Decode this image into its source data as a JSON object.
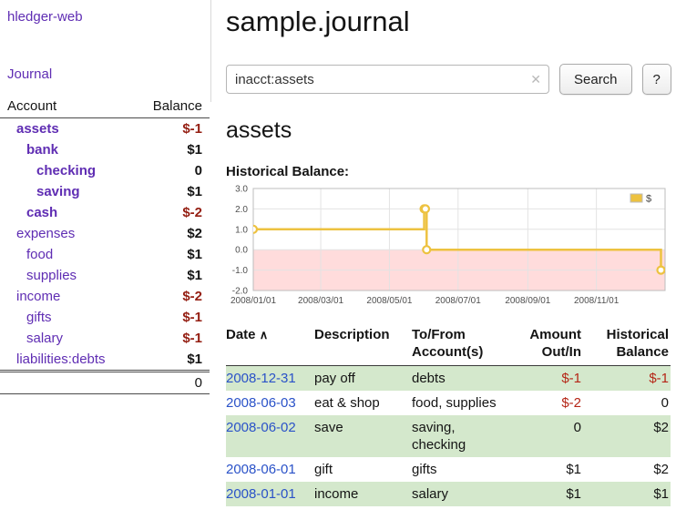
{
  "colors": {
    "purple": "#5f2db3",
    "link_blue": "#2a52c8",
    "negative": "#b52516",
    "sidebar_negative": "#941e12",
    "stripe": "#d4e8cc"
  },
  "app": {
    "brand": "hledger-web",
    "nav_journal": "Journal"
  },
  "sidebar": {
    "header": {
      "account": "Account",
      "balance": "Balance"
    },
    "accounts": [
      {
        "name": "assets",
        "indent": 0,
        "bold": true,
        "negative": true,
        "balance": "$-1",
        "balance_negative": true
      },
      {
        "name": "bank",
        "indent": 1,
        "bold": true,
        "negative": false,
        "balance": "$1",
        "balance_negative": false
      },
      {
        "name": "checking",
        "indent": 2,
        "bold": true,
        "negative": false,
        "balance": "0",
        "balance_negative": false
      },
      {
        "name": "saving",
        "indent": 2,
        "bold": true,
        "negative": false,
        "balance": "$1",
        "balance_negative": false
      },
      {
        "name": "cash",
        "indent": 1,
        "bold": true,
        "negative": true,
        "balance": "$-2",
        "balance_negative": true
      },
      {
        "name": "expenses",
        "indent": 0,
        "bold": false,
        "negative": false,
        "balance": "$2",
        "balance_negative": false
      },
      {
        "name": "food",
        "indent": 1,
        "bold": false,
        "negative": false,
        "balance": "$1",
        "balance_negative": false
      },
      {
        "name": "supplies",
        "indent": 1,
        "bold": false,
        "negative": false,
        "balance": "$1",
        "balance_negative": false
      },
      {
        "name": "income",
        "indent": 0,
        "bold": false,
        "negative": false,
        "balance": "$-2",
        "balance_negative": true
      },
      {
        "name": "gifts",
        "indent": 1,
        "bold": false,
        "negative": false,
        "balance": "$-1",
        "balance_negative": true
      },
      {
        "name": "salary",
        "indent": 1,
        "bold": false,
        "negative": false,
        "balance": "$-1",
        "balance_negative": true
      },
      {
        "name": "liabilities:debts",
        "indent": 0,
        "bold": false,
        "negative": false,
        "balance": "$1",
        "balance_negative": false
      }
    ],
    "total": "0"
  },
  "main": {
    "title": "sample.journal",
    "search": {
      "value": "inacct:assets",
      "clear_icon": "✕",
      "button": "Search",
      "help": "?"
    },
    "account_heading": "assets",
    "chart_label": "Historical Balance:"
  },
  "chart_data": {
    "type": "line",
    "step": true,
    "title": "Historical Balance",
    "series": [
      {
        "name": "$",
        "color": "#edc240",
        "points": [
          {
            "date": "2008-01-01",
            "value": 1,
            "fx": 0.0
          },
          {
            "date": "2008-06-01",
            "value": 2,
            "fx": 0.415
          },
          {
            "date": "2008-06-02",
            "value": 2,
            "fx": 0.418
          },
          {
            "date": "2008-06-03",
            "value": 0,
            "fx": 0.421
          },
          {
            "date": "2008-12-31",
            "value": -1,
            "fx": 0.99
          }
        ]
      }
    ],
    "ylim": [
      -2,
      3
    ],
    "yticks": [
      {
        "v": 3,
        "label": "3.0"
      },
      {
        "v": 2,
        "label": "2.0"
      },
      {
        "v": 1,
        "label": "1.0"
      },
      {
        "v": 0,
        "label": "0.0"
      },
      {
        "v": -1,
        "label": "-1.0"
      },
      {
        "v": -2,
        "label": "-2.0"
      }
    ],
    "xticks": [
      {
        "fx": 0.0,
        "label": "2008/01/01"
      },
      {
        "fx": 0.1639,
        "label": "2008/03/01"
      },
      {
        "fx": 0.3306,
        "label": "2008/05/01"
      },
      {
        "fx": 0.4973,
        "label": "2008/07/01"
      },
      {
        "fx": 0.6667,
        "label": "2008/09/01"
      },
      {
        "fx": 0.8333,
        "label": "2008/11/01"
      }
    ],
    "legend": {
      "label": "$",
      "position": "top-right"
    },
    "negative_region": {
      "below": 0
    },
    "colors": {
      "negative_bg": "#ffdcdc",
      "grid": "#e3e3e3",
      "border": "#bdbdbd",
      "tick_text": "#4f4f4f"
    }
  },
  "register": {
    "headers": {
      "date": "Date",
      "sort_icon": "∧",
      "description": "Description",
      "accounts": "To/From Account(s)",
      "amount": "Amount Out/In",
      "balance": "Historical Balance"
    },
    "rows": [
      {
        "date": "2008-12-31",
        "description": "pay off",
        "accounts": "debts",
        "amount": "$-1",
        "amount_negative": true,
        "balance": "$-1",
        "balance_negative": true,
        "shaded": true
      },
      {
        "date": "2008-06-03",
        "description": "eat & shop",
        "accounts": "food, supplies",
        "amount": "$-2",
        "amount_negative": true,
        "balance": "0",
        "balance_negative": false,
        "shaded": false
      },
      {
        "date": "2008-06-02",
        "description": "save",
        "accounts": "saving, checking",
        "amount": "0",
        "amount_negative": false,
        "balance": "$2",
        "balance_negative": false,
        "shaded": true
      },
      {
        "date": "2008-06-01",
        "description": "gift",
        "accounts": "gifts",
        "amount": "$1",
        "amount_negative": false,
        "balance": "$2",
        "balance_negative": false,
        "shaded": false
      },
      {
        "date": "2008-01-01",
        "description": "income",
        "accounts": "salary",
        "amount": "$1",
        "amount_negative": false,
        "balance": "$1",
        "balance_negative": false,
        "shaded": true
      }
    ]
  }
}
